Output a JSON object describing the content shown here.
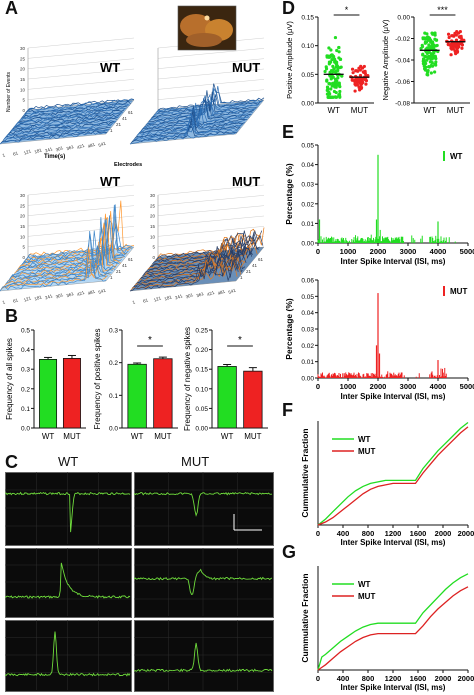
{
  "panel_labels": {
    "a": "A",
    "b": "B",
    "c": "C",
    "d": "D",
    "e": "E",
    "f": "F",
    "g": "G"
  },
  "panel_a": {
    "groups": {
      "wt": "WT",
      "mut": "MUT"
    },
    "ylabel": "Number of Events",
    "xlabel": "Time(s)",
    "zlabel": "Electrodes",
    "yticks": [
      "0",
      "5",
      "10",
      "15",
      "20",
      "25",
      "30"
    ],
    "time_ticks": [
      "1",
      "61",
      "121",
      "181",
      "241",
      "301",
      "361",
      "421",
      "481",
      "541"
    ],
    "electrode_ticks": [
      "1",
      "21",
      "41",
      "61"
    ]
  },
  "panel_c": {
    "wt": "WT",
    "mut": "MUT",
    "colors": {
      "trace": "#6fdc3c",
      "background": "#0b0b0b",
      "scalebar": "#ffffff"
    }
  },
  "chart_data": [
    {
      "id": "B1",
      "type": "bar",
      "categories": [
        "WT",
        "MUT"
      ],
      "values": [
        0.35,
        0.355
      ],
      "errors": [
        0.01,
        0.015
      ],
      "ylabel": "Frequency of all spikes",
      "ylim": [
        0,
        0.5
      ],
      "yticks": [
        "0.0",
        "0.1",
        "0.2",
        "0.3",
        "0.4",
        "0.5"
      ],
      "colors": [
        "#22dd22",
        "#ee2222"
      ],
      "significance": ""
    },
    {
      "id": "B2",
      "type": "bar",
      "categories": [
        "WT",
        "MUT"
      ],
      "values": [
        0.195,
        0.212
      ],
      "errors": [
        0.004,
        0.005
      ],
      "ylabel": "Frequency of positive spikes",
      "ylim": [
        0,
        0.3
      ],
      "yticks": [
        "0.0",
        "0.1",
        "0.2",
        "0.3"
      ],
      "colors": [
        "#22dd22",
        "#ee2222"
      ],
      "significance": "*"
    },
    {
      "id": "B3",
      "type": "bar",
      "categories": [
        "WT",
        "MUT"
      ],
      "values": [
        0.157,
        0.145
      ],
      "errors": [
        0.005,
        0.009
      ],
      "ylabel": "Frequency of negative spikes",
      "ylim": [
        0,
        0.25
      ],
      "yticks": [
        "0.00",
        "0.05",
        "0.10",
        "0.15",
        "0.20",
        "0.25"
      ],
      "colors": [
        "#22dd22",
        "#ee2222"
      ],
      "significance": "*"
    },
    {
      "id": "D1",
      "type": "scatter",
      "categories": [
        "WT",
        "MUT"
      ],
      "ylabel": "Positive Amplitude (μV)",
      "ylim": [
        0,
        0.15
      ],
      "yticks": [
        "0.00",
        "0.05",
        "0.10",
        "0.15"
      ],
      "series": [
        {
          "name": "WT",
          "center": 0.05,
          "spread_low": 0.01,
          "spread_high": 0.12,
          "sd": 0.025,
          "n": 120
        },
        {
          "name": "MUT",
          "center": 0.045,
          "spread_low": 0.015,
          "spread_high": 0.07,
          "sd": 0.012,
          "n": 70
        }
      ],
      "colors": [
        "#22dd22",
        "#ee2222"
      ],
      "significance": "*"
    },
    {
      "id": "D2",
      "type": "scatter",
      "categories": [
        "WT",
        "MUT"
      ],
      "ylabel": "Negative Amplitude (μV)",
      "ylim": [
        -0.08,
        0
      ],
      "yticks": [
        "0.00",
        "-0.02",
        "-0.04",
        "-0.06",
        "-0.08"
      ],
      "series": [
        {
          "name": "WT",
          "center": -0.031,
          "spread_low": -0.07,
          "spread_high": -0.015,
          "sd": 0.009,
          "n": 120
        },
        {
          "name": "MUT",
          "center": -0.023,
          "spread_low": -0.04,
          "spread_high": -0.012,
          "sd": 0.006,
          "n": 70
        }
      ],
      "colors": [
        "#22dd22",
        "#ee2222"
      ],
      "significance": "***"
    },
    {
      "id": "E1",
      "type": "bar",
      "xlabel": "Inter Spike Interval (ISI, ms)",
      "ylabel": "Percentage (%)",
      "xlim": [
        0,
        5000
      ],
      "ylim": [
        0,
        0.05
      ],
      "xticks": [
        "0",
        "1000",
        "2000",
        "3000",
        "4000",
        "5000"
      ],
      "yticks": [
        "0.00",
        "0.01",
        "0.02",
        "0.03",
        "0.04",
        "0.05"
      ],
      "legend": "WT",
      "color": "#22dd22",
      "peaks": [
        {
          "x": 2000,
          "y": 0.045
        },
        {
          "x": 4000,
          "y": 0.011
        },
        {
          "x": 50,
          "y": 0.012
        },
        {
          "x": 1950,
          "y": 0.012
        }
      ]
    },
    {
      "id": "E2",
      "type": "bar",
      "xlabel": "Inter Spike Interval (ISI, ms)",
      "ylabel": "Percentage (%)",
      "xlim": [
        0,
        5000
      ],
      "ylim": [
        0,
        0.06
      ],
      "xticks": [
        "0",
        "1000",
        "2000",
        "3000",
        "4000",
        "5000"
      ],
      "yticks": [
        "0.00",
        "0.01",
        "0.02",
        "0.03",
        "0.04",
        "0.05",
        "0.06"
      ],
      "legend": "MUT",
      "color": "#ee2222",
      "peaks": [
        {
          "x": 2000,
          "y": 0.052
        },
        {
          "x": 4000,
          "y": 0.011
        },
        {
          "x": 1950,
          "y": 0.02
        },
        {
          "x": 2050,
          "y": 0.015
        }
      ]
    },
    {
      "id": "F",
      "type": "line",
      "xlabel": "Inter Spike Interval (ISI, ms)",
      "ylabel": "Cummulative Fraction",
      "xlim": [
        0,
        20000
      ],
      "ylim": [
        0,
        0.7
      ],
      "xticks": [
        "0",
        "400",
        "800",
        "1200",
        "1600",
        "2000",
        "20000"
      ],
      "series": [
        {
          "name": "WT",
          "color": "#22dd22",
          "x": [
            0,
            1000,
            2000,
            3000,
            4000,
            5000,
            6000,
            7000,
            8000,
            9000,
            10000,
            11000,
            12000,
            13000,
            14000,
            15000,
            16000,
            17000,
            18000,
            19000,
            20000
          ],
          "y": [
            0.0,
            0.04,
            0.09,
            0.14,
            0.19,
            0.23,
            0.26,
            0.28,
            0.29,
            0.3,
            0.3,
            0.3,
            0.3,
            0.3,
            0.38,
            0.44,
            0.5,
            0.55,
            0.6,
            0.65,
            0.69
          ]
        },
        {
          "name": "MUT",
          "color": "#dd2222",
          "x": [
            0,
            1000,
            2000,
            3000,
            4000,
            5000,
            6000,
            7000,
            8000,
            9000,
            10000,
            11000,
            12000,
            13000,
            14000,
            15000,
            16000,
            17000,
            18000,
            19000,
            20000
          ],
          "y": [
            0.0,
            0.02,
            0.05,
            0.09,
            0.13,
            0.17,
            0.21,
            0.24,
            0.26,
            0.27,
            0.28,
            0.28,
            0.28,
            0.28,
            0.35,
            0.41,
            0.47,
            0.52,
            0.57,
            0.62,
            0.66
          ]
        }
      ]
    },
    {
      "id": "G",
      "type": "line",
      "xlabel": "Inter Spike Interval (ISI, ms)",
      "ylabel": "Cummulative Fraction",
      "xlim": [
        0,
        20000
      ],
      "ylim": [
        0,
        0.8
      ],
      "xticks": [
        "0",
        "400",
        "800",
        "1200",
        "1600",
        "2000",
        "20000"
      ],
      "series": [
        {
          "name": "WT",
          "color": "#22dd22",
          "x": [
            0,
            500,
            1000,
            2000,
            3000,
            4000,
            5000,
            6000,
            7000,
            8000,
            9000,
            10000,
            11000,
            12000,
            13000,
            14000,
            15000,
            16000,
            17000,
            18000,
            19000,
            20000
          ],
          "y": [
            0.0,
            0.1,
            0.12,
            0.17,
            0.22,
            0.26,
            0.3,
            0.33,
            0.35,
            0.36,
            0.36,
            0.36,
            0.36,
            0.36,
            0.36,
            0.44,
            0.5,
            0.56,
            0.62,
            0.67,
            0.71,
            0.74
          ]
        },
        {
          "name": "MUT",
          "color": "#dd2222",
          "x": [
            0,
            500,
            1000,
            2000,
            3000,
            4000,
            5000,
            6000,
            7000,
            8000,
            9000,
            10000,
            11000,
            12000,
            13000,
            14000,
            15000,
            16000,
            17000,
            18000,
            19000,
            20000
          ],
          "y": [
            0.0,
            0.02,
            0.04,
            0.09,
            0.14,
            0.18,
            0.22,
            0.25,
            0.27,
            0.28,
            0.28,
            0.28,
            0.28,
            0.28,
            0.28,
            0.34,
            0.41,
            0.47,
            0.52,
            0.57,
            0.61,
            0.64
          ]
        }
      ]
    }
  ]
}
